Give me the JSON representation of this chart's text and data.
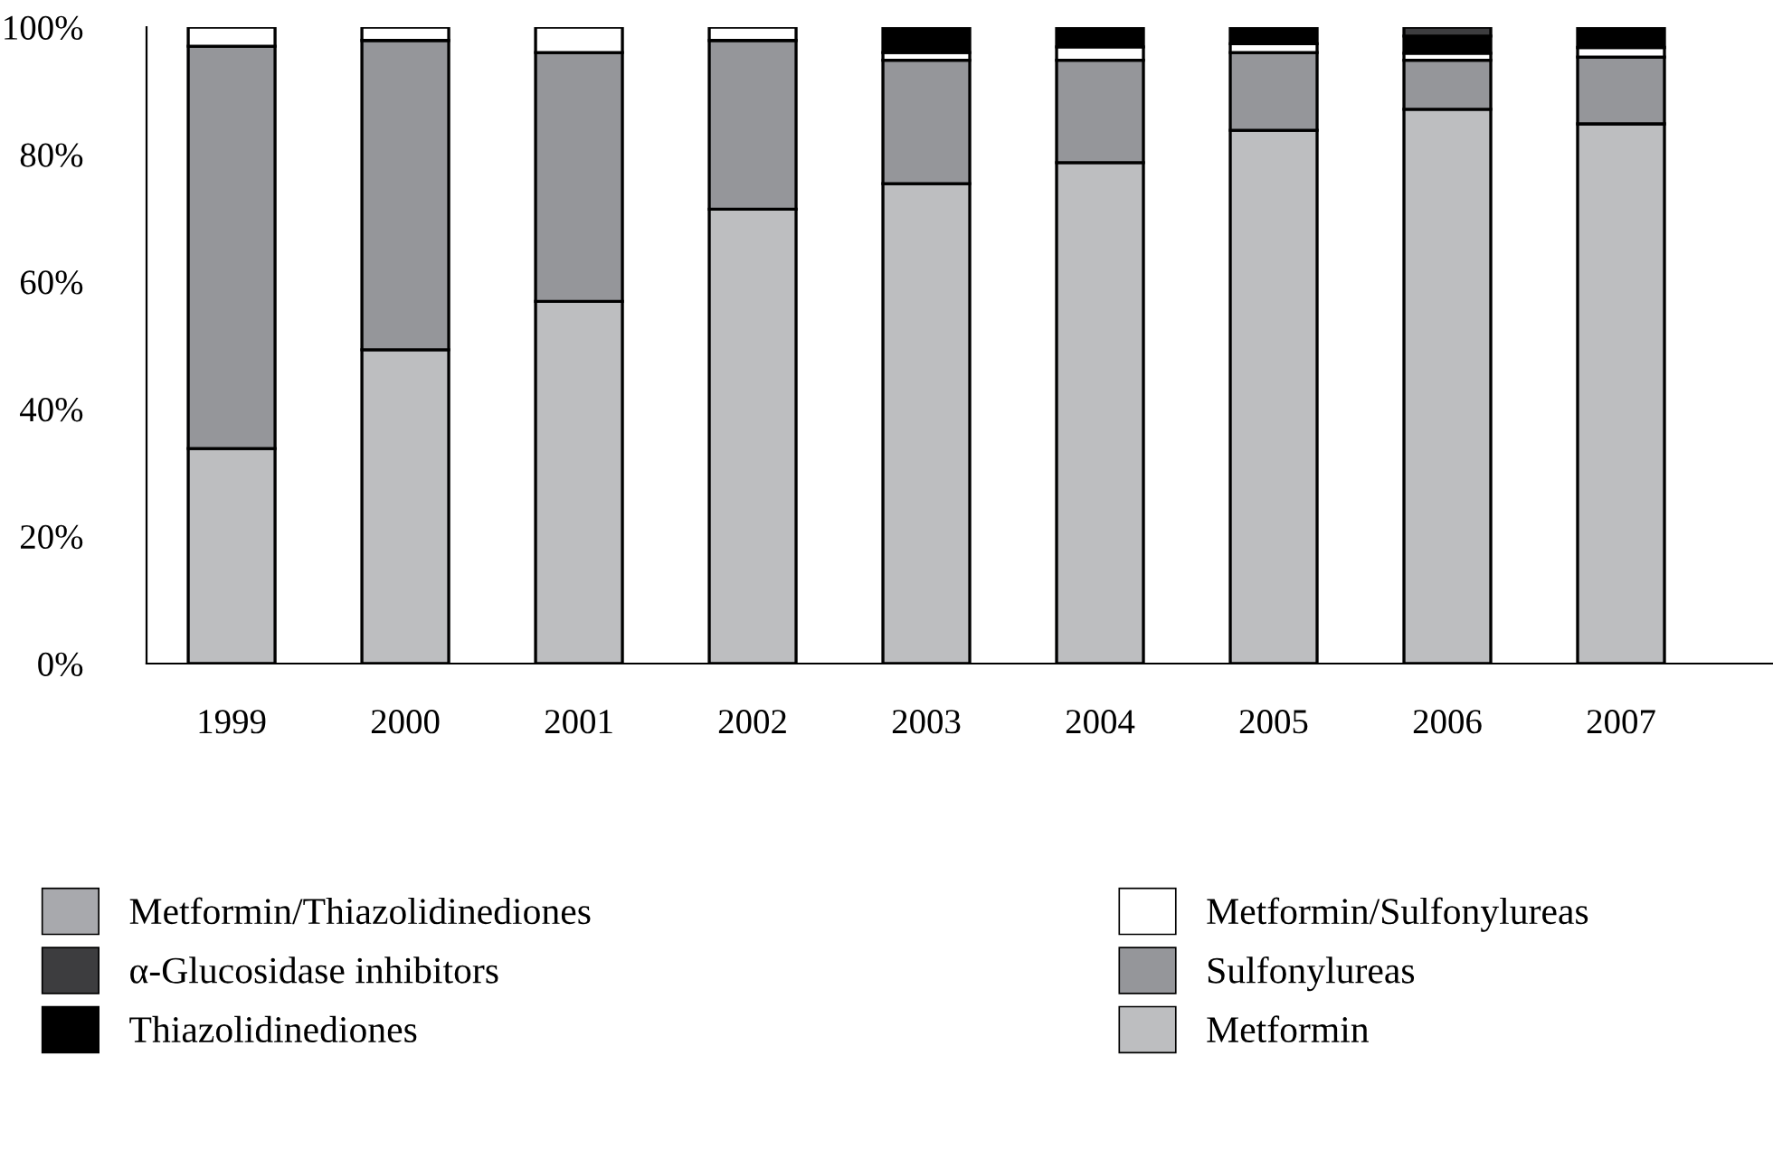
{
  "chart_data": {
    "type": "bar",
    "stacked": true,
    "categories": [
      "1999",
      "2000",
      "2001",
      "2002",
      "2003",
      "2004",
      "2005",
      "2006",
      "2007"
    ],
    "series": [
      {
        "name": "Metformin",
        "color": "#bdbec0",
        "values": [
          33.8,
          49.3,
          56.9,
          71.4,
          75.4,
          78.7,
          83.8,
          87.1,
          84.8
        ]
      },
      {
        "name": "Sulfonylureas",
        "color": "#95969a",
        "values": [
          63.2,
          48.6,
          39.1,
          26.5,
          19.4,
          16.1,
          12.2,
          7.7,
          10.5
        ]
      },
      {
        "name": "Metformin/Sulfonylureas",
        "color": "#ffffff",
        "values": [
          3.0,
          2.1,
          4.0,
          2.1,
          1.2,
          2.1,
          1.4,
          1.1,
          1.5
        ]
      },
      {
        "name": "Thiazolidinediones",
        "color": "#000000",
        "values": [
          null,
          null,
          null,
          null,
          4.0,
          3.1,
          2.6,
          2.7,
          3.2
        ]
      },
      {
        "name": "α-Glucosidase inhibitors",
        "color": "#3d3d3f",
        "values": [
          null,
          null,
          null,
          null,
          null,
          null,
          null,
          1.4,
          null
        ]
      },
      {
        "name": "Metformin/Thiazolidinediones",
        "color": "#a8a9ad",
        "values": [
          null,
          null,
          null,
          null,
          null,
          null,
          null,
          null,
          null
        ]
      }
    ],
    "ylim": [
      0,
      100
    ],
    "yticks": [
      {
        "value": 0,
        "label": "0%"
      },
      {
        "value": 20,
        "label": "20%"
      },
      {
        "value": 40,
        "label": "40%"
      },
      {
        "value": 60,
        "label": "60%"
      },
      {
        "value": 80,
        "label": "80%"
      },
      {
        "value": 100,
        "label": "100%"
      }
    ],
    "grid": false,
    "legend": "bottom"
  }
}
